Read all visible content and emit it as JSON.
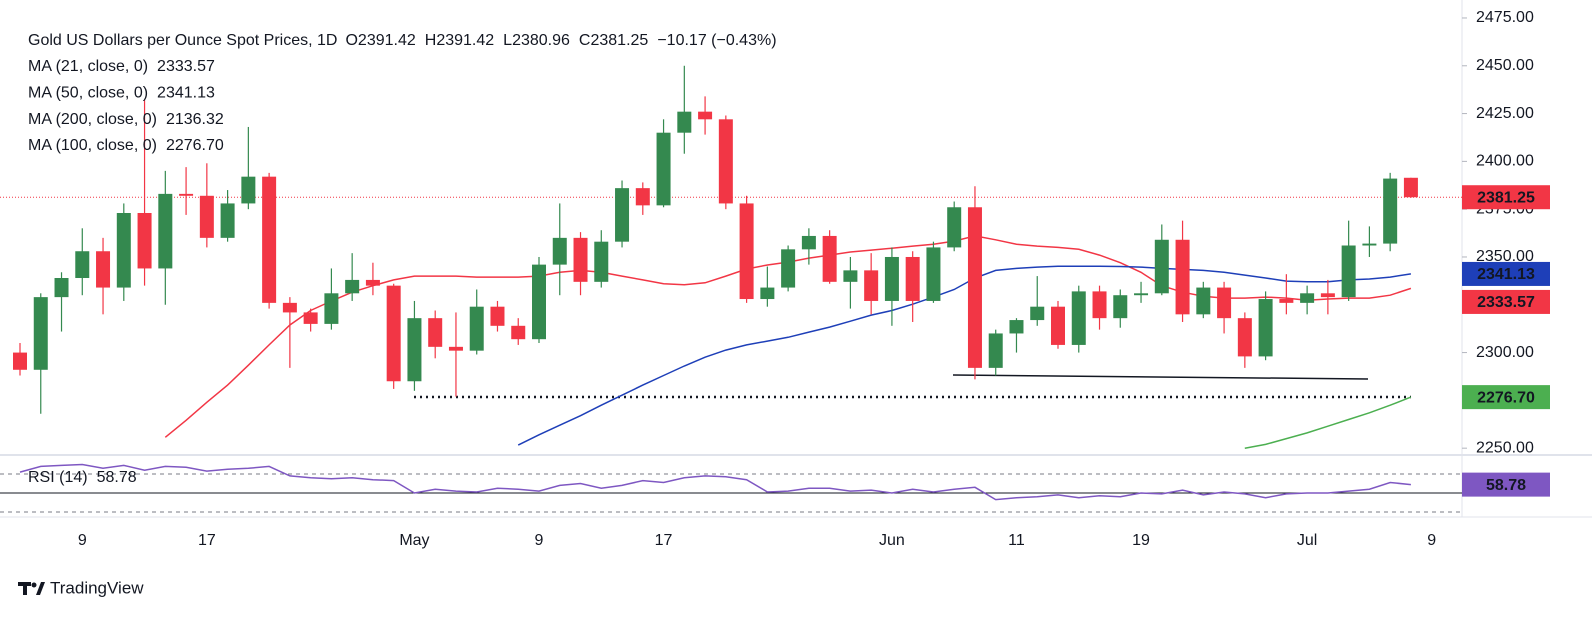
{
  "chart_data": {
    "type": "candlestick",
    "title": "Gold US Dollars per Ounce Spot Prices, 1D",
    "ohlc_labels": [
      "O",
      "H",
      "L",
      "C"
    ],
    "change": "−10.17 (−0.43%)",
    "categories": [
      null,
      null,
      null,
      "9",
      null,
      null,
      null,
      null,
      null,
      "17",
      null,
      null,
      null,
      null,
      null,
      null,
      null,
      null,
      null,
      "May",
      null,
      null,
      null,
      null,
      null,
      "9",
      null,
      null,
      null,
      null,
      null,
      "17",
      null,
      null,
      null,
      null,
      null,
      null,
      null,
      null,
      null,
      null,
      "Jun",
      null,
      null,
      null,
      null,
      null,
      "11",
      null,
      null,
      null,
      null,
      null,
      "19",
      null,
      null,
      null,
      null,
      null,
      null,
      null,
      "Jul",
      null,
      null,
      null,
      null,
      null,
      "9"
    ],
    "candles": {
      "up_color": "#34894f",
      "down_color": "#f23645",
      "open": [
        2300,
        2291,
        2329,
        2339,
        2353,
        2334,
        2373,
        2344,
        2383,
        2382,
        2360,
        2378,
        2392,
        2326,
        2321,
        2315,
        2331,
        2338,
        2335,
        2285,
        2318,
        2303,
        2301,
        2324,
        2314,
        2307,
        2346,
        2360,
        2337,
        2358,
        2386,
        2377,
        2415,
        2426,
        2422,
        2378,
        2328,
        2334,
        2354,
        2361,
        2337,
        2343,
        2327,
        2350,
        2327,
        2355,
        2376,
        2292,
        2310,
        2317,
        2324,
        2304,
        2332,
        2318,
        2330,
        2331,
        2359,
        2320,
        2334,
        2318,
        2298,
        2328,
        2326,
        2331,
        2329,
        2356,
        2357,
        2391.42,
        null
      ],
      "high": [
        2305,
        2331,
        2342,
        2365,
        2360,
        2378,
        2432,
        2395,
        2397,
        2399,
        2385,
        2418,
        2394,
        2329,
        2323,
        2344,
        2352,
        2347,
        2336,
        2327,
        2322,
        2321,
        2333,
        2327,
        2318,
        2350,
        2378,
        2363,
        2364,
        2390,
        2389,
        2422,
        2450,
        2434,
        2424,
        2382,
        2345,
        2356,
        2365,
        2364,
        2350,
        2352,
        2355,
        2353,
        2358,
        2379,
        2387,
        2312,
        2318,
        2340,
        2327,
        2335,
        2335,
        2333,
        2337,
        2367,
        2369,
        2337,
        2337,
        2321,
        2332,
        2341,
        2335,
        2338,
        2369,
        2366,
        2394,
        2391.42,
        null
      ],
      "low": [
        2288,
        2268,
        2311,
        2330,
        2320,
        2327,
        2335,
        2325,
        2372,
        2355,
        2358,
        2375,
        2323,
        2292,
        2311,
        2312,
        2327,
        2330,
        2281,
        2280,
        2297,
        2277,
        2299,
        2311,
        2304,
        2305,
        2330,
        2330,
        2334,
        2355,
        2372,
        2376,
        2404,
        2414,
        2375,
        2326,
        2324,
        2332,
        2346,
        2336,
        2323,
        2320,
        2314,
        2316,
        2326,
        2353,
        2286,
        2288,
        2300,
        2314,
        2302,
        2300,
        2312,
        2313,
        2326,
        2330,
        2316,
        2318,
        2310,
        2292,
        2296,
        2320,
        2320,
        2320,
        2327,
        2350,
        2353,
        2380.96,
        null
      ],
      "close": [
        2291,
        2329,
        2339,
        2353,
        2334,
        2373,
        2344,
        2383,
        2382,
        2360,
        2378,
        2392,
        2326,
        2321,
        2315,
        2331,
        2338,
        2335,
        2285,
        2318,
        2303,
        2301,
        2324,
        2314,
        2307,
        2346,
        2360,
        2337,
        2358,
        2386,
        2377,
        2415,
        2426,
        2422,
        2378,
        2328,
        2334,
        2354,
        2361,
        2337,
        2343,
        2327,
        2350,
        2327,
        2355,
        2376,
        2292,
        2310,
        2317,
        2324,
        2304,
        2332,
        2318,
        2330,
        2331,
        2359,
        2320,
        2334,
        2318,
        2298,
        2328,
        2326,
        2331,
        2329,
        2356,
        2357,
        2391,
        2381.25,
        null
      ]
    },
    "indicators": [
      {
        "name": "MA (21, close, 0)",
        "color": "#f23645",
        "last": 2333.57,
        "values": [
          null,
          null,
          null,
          null,
          null,
          null,
          null,
          2255.7,
          2264.6,
          2274,
          2283,
          2293.4,
          2304,
          2314.4,
          2322,
          2327,
          2331.6,
          2335,
          2338,
          2340,
          2340,
          2340,
          2339.5,
          2339.5,
          2339.5,
          2340,
          2342,
          2343,
          2342,
          2340,
          2338,
          2336,
          2335.5,
          2336.5,
          2340,
          2343.7,
          2345.8,
          2347.3,
          2349.4,
          2351,
          2352.6,
          2353.6,
          2354.6,
          2355.7,
          2356.7,
          2358.3,
          2361,
          2359,
          2356.7,
          2355.7,
          2355,
          2354,
          2351,
          2347,
          2342,
          2335,
          2331.6,
          2329.5,
          2328.5,
          2328.5,
          2329,
          2328.5,
          2327.4,
          2328,
          2328.5,
          2328.5,
          2330,
          2333.57,
          null
        ]
      },
      {
        "name": "MA (50, close, 0)",
        "color": "#1e3fb8",
        "last": 2341.13,
        "values": [
          null,
          null,
          null,
          null,
          null,
          null,
          null,
          null,
          null,
          null,
          null,
          null,
          null,
          null,
          null,
          null,
          null,
          null,
          null,
          null,
          null,
          null,
          null,
          null,
          2251.6,
          2257,
          2262,
          2267,
          2272.5,
          2277.7,
          2283,
          2288,
          2293,
          2297.6,
          2301.3,
          2304,
          2306,
          2308,
          2310.7,
          2313.3,
          2316.4,
          2319.6,
          2322,
          2325.3,
          2329,
          2333,
          2339,
          2343,
          2344,
          2344.7,
          2345.2,
          2345.2,
          2345.2,
          2345,
          2344.7,
          2344,
          2343.5,
          2343,
          2342,
          2340.5,
          2339,
          2337.4,
          2337,
          2337,
          2338,
          2338.5,
          2339.5,
          2341.13,
          null
        ]
      },
      {
        "name": "MA (200, close, 0)",
        "color": "#f48fb1",
        "last": 2136.32
      },
      {
        "name": "MA (100, close, 0)",
        "color": "#4caf50",
        "last": {
          "value": 2276.7,
          "label": "2276.70"
        },
        "values": [
          null,
          null,
          null,
          null,
          null,
          null,
          null,
          null,
          null,
          null,
          null,
          null,
          null,
          null,
          null,
          null,
          null,
          null,
          null,
          null,
          null,
          null,
          null,
          null,
          null,
          null,
          null,
          null,
          null,
          null,
          null,
          null,
          null,
          null,
          null,
          null,
          null,
          null,
          null,
          null,
          null,
          null,
          null,
          null,
          null,
          null,
          null,
          null,
          null,
          null,
          null,
          null,
          null,
          null,
          null,
          null,
          null,
          null,
          null,
          2250,
          2252,
          2255,
          2258,
          2261.5,
          2265,
          2268.5,
          2272.5,
          2276.7,
          null
        ]
      }
    ],
    "ylim": [
      2248,
      2484.4
    ],
    "yticks": [
      {
        "value": 2250,
        "label": "2250.00"
      },
      {
        "value": 2275,
        "label": "2275.00"
      },
      {
        "value": 2300,
        "label": "2300.00"
      },
      {
        "value": 2325,
        "label": "2325.00"
      },
      {
        "value": 2350,
        "label": "2350.00"
      },
      {
        "value": 2375,
        "label": "2375.00"
      },
      {
        "value": 2400,
        "label": "2400.00"
      },
      {
        "value": 2425,
        "label": "2425.00"
      },
      {
        "value": 2450,
        "label": "2450.00"
      },
      {
        "value": 2475,
        "label": "2475.00"
      }
    ],
    "rsi": {
      "name": "RSI (14)",
      "color": "#7e57c2",
      "last": 58.78,
      "levels": [
        70,
        50,
        30
      ],
      "ylim": [
        26.8,
        86.8
      ],
      "values": [
        72,
        78,
        79,
        80,
        76,
        79,
        74,
        78,
        77,
        73,
        75,
        76,
        78,
        68,
        66,
        65,
        66,
        64,
        63,
        50,
        54,
        52,
        51,
        55,
        54,
        52,
        58,
        60,
        55,
        58,
        63,
        61,
        66,
        68,
        67,
        64,
        51,
        52,
        55,
        55,
        52,
        53,
        50,
        54,
        51,
        54,
        56,
        43,
        45,
        46,
        48,
        45,
        47,
        46,
        50,
        49,
        53,
        48,
        51,
        49,
        45,
        49,
        50,
        50,
        52,
        54,
        61,
        58.78,
        null
      ]
    },
    "brand": "TradingView"
  }
}
